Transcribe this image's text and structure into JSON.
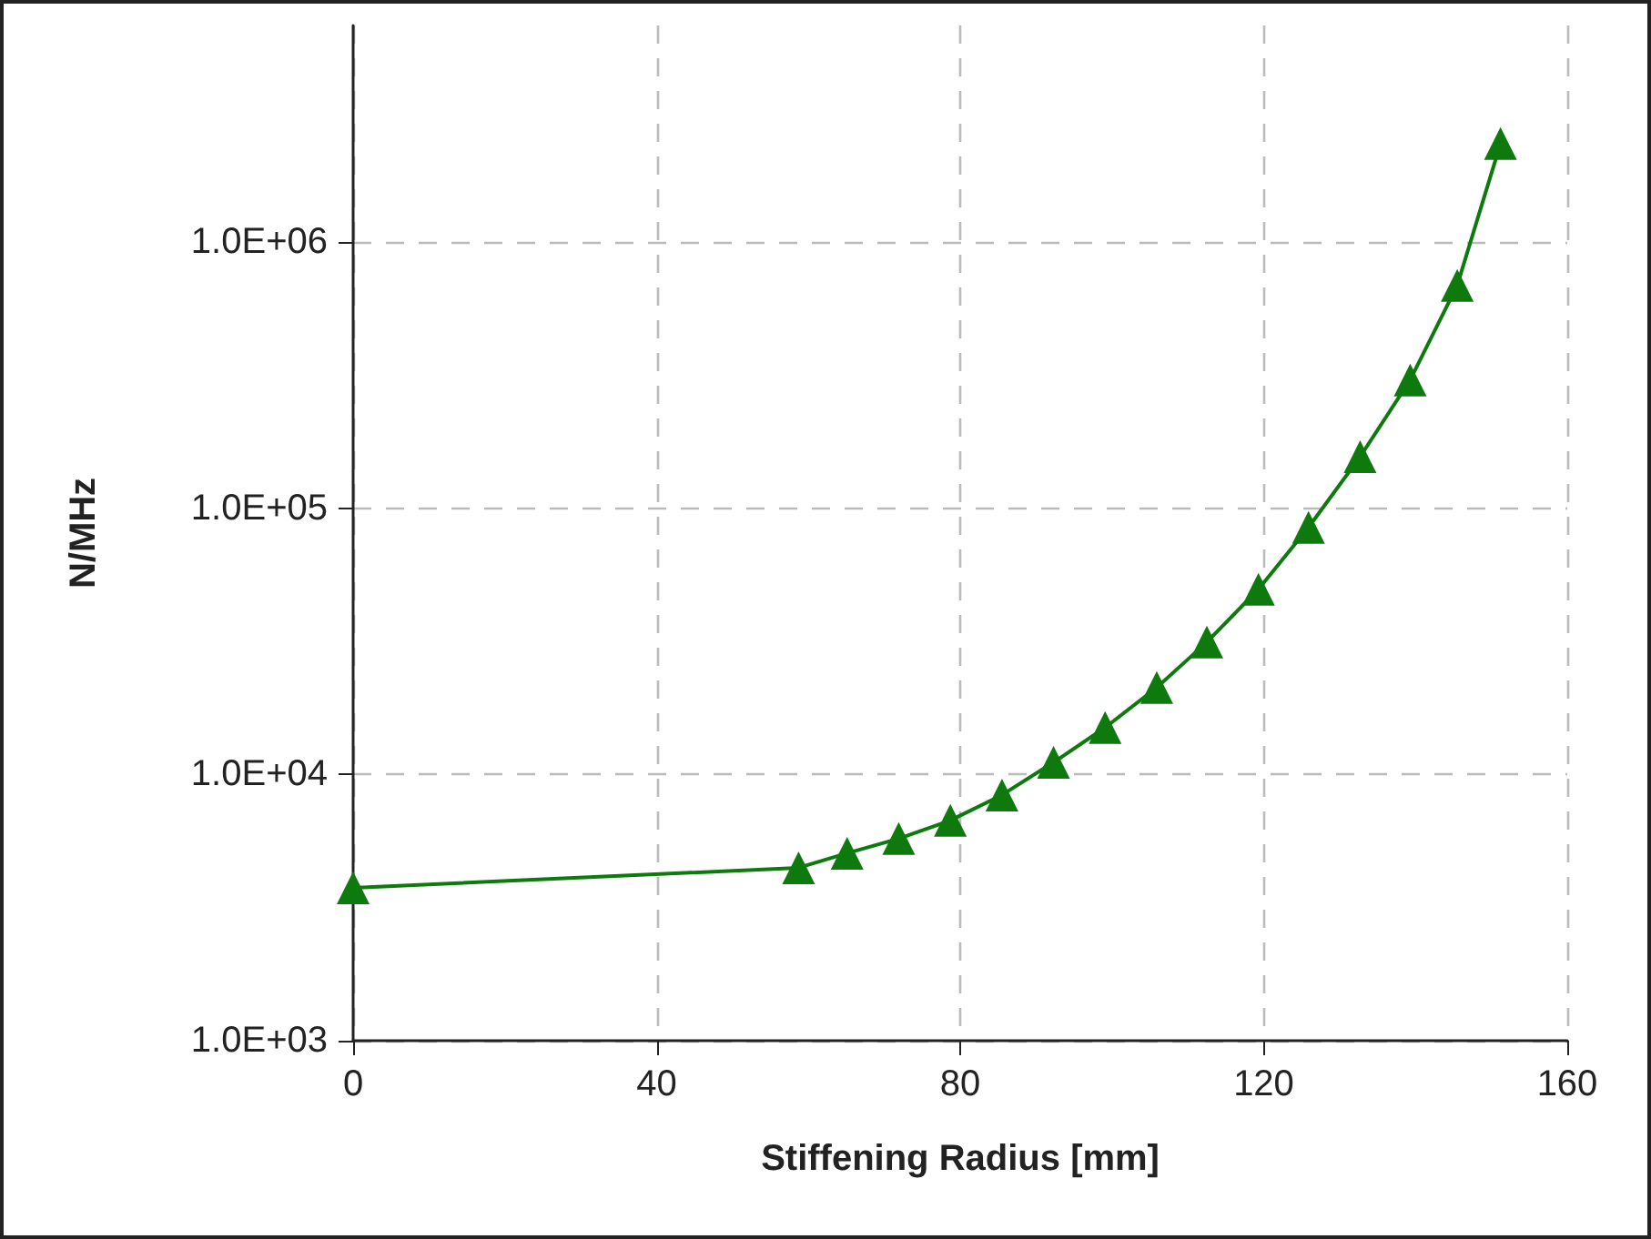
{
  "chart_data": {
    "type": "line",
    "xlabel": "Stiffening Radius [mm]",
    "ylabel": "N/MHz",
    "x": [
      0,
      58.7,
      65.1,
      71.9,
      78.7,
      85.5,
      92.3,
      99.1,
      105.9,
      112.5,
      119.3,
      125.9,
      132.7,
      139.3,
      145.5,
      151.2
    ],
    "series": [
      {
        "color": "#0e7a0e",
        "values": [
          3750,
          4460,
          5060,
          5740,
          6720,
          8370,
          11100,
          15000,
          21200,
          31400,
          49600,
          84700,
          156000,
          303000,
          687000,
          2340000
        ]
      }
    ],
    "xlim": [
      0,
      160
    ],
    "xticks": [
      0,
      40,
      80,
      120,
      160
    ],
    "ylim": [
      1000,
      6500000
    ],
    "yticks": [
      {
        "value": 1000,
        "label": "1.0E+03"
      },
      {
        "value": 10000,
        "label": "1.0E+04"
      },
      {
        "value": 100000,
        "label": "1.0E+05"
      },
      {
        "value": 1000000,
        "label": "1.0E+06"
      }
    ],
    "log": "y",
    "grid": true,
    "marker": "triangle",
    "line_style": "solid"
  }
}
